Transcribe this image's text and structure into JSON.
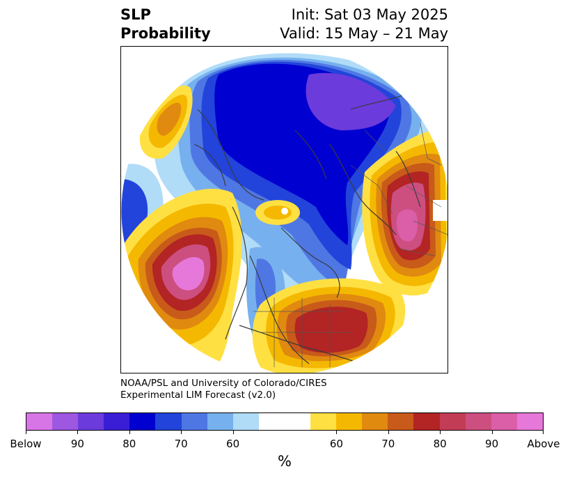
{
  "header": {
    "title_line1": "SLP",
    "title_line2": "Probability",
    "init_line": "Init: Sat 03 May 2025",
    "valid_line": "Valid: 15 May – 21 May"
  },
  "credit": {
    "line1": "NOAA/PSL and University of Colorado/CIRES",
    "line2": "Experimental LIM Forecast (v2.0)"
  },
  "colorbar": {
    "colors": [
      "#d875e6",
      "#9e57e0",
      "#6c3bdb",
      "#3a1ed6",
      "#0000d0",
      "#2244da",
      "#4f77e4",
      "#77b0ee",
      "#b0dcf8",
      "#ffffff",
      "#ffffff",
      "#ffe043",
      "#f5b800",
      "#e08a10",
      "#c85a1a",
      "#b32424",
      "#c23c55",
      "#cc4f80",
      "#db5ea8",
      "#e678da"
    ],
    "tick_labels": [
      "Below",
      "90",
      "80",
      "70",
      "60",
      "60",
      "70",
      "80",
      "90",
      "Above"
    ],
    "unit_label": "%"
  },
  "map": {
    "regions": [
      {
        "category": "above",
        "level": 1,
        "color": "#ffe043"
      },
      {
        "category": "above",
        "level": 2,
        "color": "#f5b800"
      },
      {
        "category": "above",
        "level": 3,
        "color": "#e08a10"
      },
      {
        "category": "above",
        "level": 4,
        "color": "#c85a1a"
      },
      {
        "category": "above",
        "level": 5,
        "color": "#b32424"
      },
      {
        "category": "above",
        "level": 6,
        "color": "#cc4f80"
      },
      {
        "category": "above",
        "level": 7,
        "color": "#e678da"
      },
      {
        "category": "below",
        "level": 1,
        "color": "#b0dcf8"
      },
      {
        "category": "below",
        "level": 2,
        "color": "#77b0ee"
      },
      {
        "category": "below",
        "level": 3,
        "color": "#4f77e4"
      },
      {
        "category": "below",
        "level": 4,
        "color": "#2244da"
      },
      {
        "category": "below",
        "level": 5,
        "color": "#0000d0"
      },
      {
        "category": "below",
        "level": 6,
        "color": "#6c3bdb"
      }
    ]
  }
}
